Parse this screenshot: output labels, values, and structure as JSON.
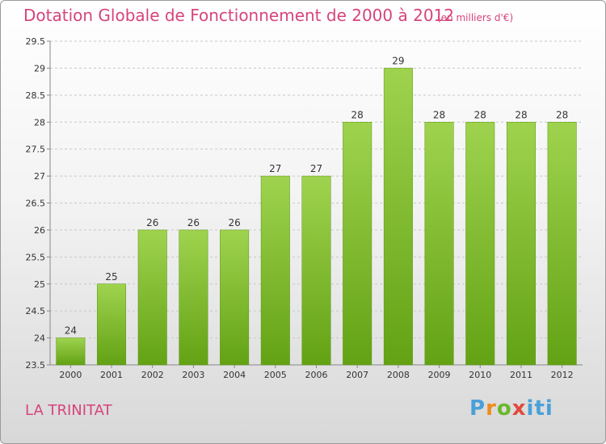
{
  "header": {
    "title": "Dotation Globale de Fonctionnement de 2000 à 2012",
    "unit": "(en milliers d'€)"
  },
  "footer": {
    "city": "LA TRINITAT",
    "logo": {
      "p": "P",
      "r": "r",
      "o": "o",
      "x": "x",
      "i": "iti"
    }
  },
  "colors": {
    "title": "#d6447c",
    "bar_top": "#9fd34f",
    "bar_bottom": "#63a214"
  },
  "chart_data": {
    "type": "bar",
    "categories": [
      "2000",
      "2001",
      "2002",
      "2003",
      "2004",
      "2005",
      "2006",
      "2007",
      "2008",
      "2009",
      "2010",
      "2011",
      "2012"
    ],
    "values": [
      24,
      25,
      26,
      26,
      26,
      27,
      27,
      28,
      29,
      28,
      28,
      28,
      28
    ],
    "title": "Dotation Globale de Fonctionnement de 2000 à 2012",
    "subtitle": "(en milliers d'€)",
    "xlabel": "",
    "ylabel": "",
    "ylim": [
      23.5,
      29.5
    ],
    "yticks": [
      23.5,
      24,
      24.5,
      25,
      25.5,
      26,
      26.5,
      27,
      27.5,
      28,
      28.5,
      29,
      29.5
    ],
    "grid": true,
    "legend": "none"
  }
}
